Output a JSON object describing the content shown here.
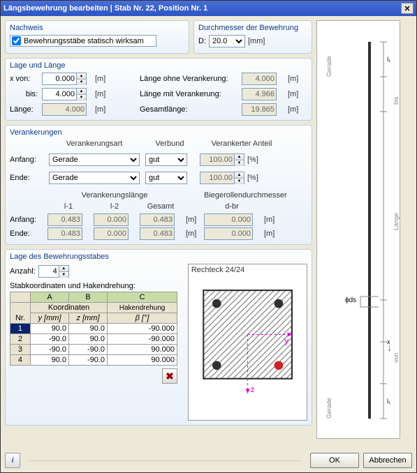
{
  "window": {
    "title": "Längsbewehrung bearbeiten  |  Stab Nr. 22, Position Nr. 1"
  },
  "nachweis": {
    "title": "Nachweis",
    "checkbox_label": "Bewehrungsstäbe statisch wirksam",
    "checked": true
  },
  "durchmesser": {
    "title": "Durchmesser der Bewehrung",
    "label": "D:",
    "value": "20.0",
    "unit": "[mm]"
  },
  "lage": {
    "title": "Lage und Länge",
    "xvon_label": "x von:",
    "xvon": "0.000",
    "xvon_unit": "[m]",
    "bis_label": "bis:",
    "bis": "4.000",
    "bis_unit": "[m]",
    "laenge_label": "Länge:",
    "laenge": "4.000",
    "laenge_unit": "[m]",
    "lov_label": "Länge ohne Verankerung:",
    "lov": "4.000",
    "lov_unit": "[m]",
    "lmv_label": "Länge mit Verankerung:",
    "lmv": "4.966",
    "lmv_unit": "[m]",
    "ges_label": "Gesamtlänge:",
    "ges": "19.865",
    "ges_unit": "[m]"
  },
  "verank": {
    "title": "Verankerungen",
    "hdr_art": "Verankerungsart",
    "hdr_verbund": "Verbund",
    "hdr_anteil": "Verankerter Anteil",
    "anfang_label": "Anfang:",
    "ende_label": "Ende:",
    "anfang_art": "Gerade",
    "ende_art": "Gerade",
    "anfang_verbund": "gut",
    "ende_verbund": "gut",
    "anfang_anteil": "100.00",
    "ende_anteil": "100.00",
    "anteil_unit": "[%]",
    "hdr_vl": "Verankerungslänge",
    "hdr_dbr": "Biegerollendurchmesser",
    "hdr_l1": "l-1",
    "hdr_l2": "l-2",
    "hdr_gesamt": "Gesamt",
    "hdr_dbr2": "d-br",
    "a_l1": "0.483",
    "a_l2": "0.000",
    "a_ges": "0.483",
    "a_dbr": "0.000",
    "e_l1": "0.483",
    "e_l2": "0.000",
    "e_ges": "0.483",
    "e_dbr": "0.000",
    "m_unit": "[m]"
  },
  "lagestab": {
    "title": "Lage des Bewehrungsstabes",
    "anzahl_label": "Anzahl:",
    "anzahl": "4",
    "sub_label": "Stabkoordinaten und Hakendrehung:",
    "col_A": "A",
    "col_B": "B",
    "col_C": "C",
    "hdr_koord": "Koordinaten",
    "hdr_haken": "Hakendrehung",
    "hdr_nr": "Nr.",
    "hdr_y": "y [mm]",
    "hdr_z": "z [mm]",
    "hdr_b": "β [°]",
    "rows": [
      {
        "nr": "1",
        "y": "90.0",
        "z": "90.0",
        "b": "-90.000"
      },
      {
        "nr": "2",
        "y": "-90.0",
        "z": "90.0",
        "b": "-90.000"
      },
      {
        "nr": "3",
        "y": "-90.0",
        "z": "-90.0",
        "b": "90.000"
      },
      {
        "nr": "4",
        "y": "90.0",
        "z": "-90.0",
        "b": "90.000"
      }
    ],
    "section_title": "Rechteck 24/24"
  },
  "preview": {
    "gerade": "Gerade",
    "bis": "bis",
    "laenge": "Länge",
    "von": "von",
    "ds": "ϕds",
    "x": "x",
    "l1": "l₁"
  },
  "footer": {
    "ok": "OK",
    "cancel": "Abbrechen"
  },
  "colors": {
    "accent": "#2c55c4",
    "hatch": "#707070",
    "rebar": "#303030",
    "axis_y": "#e000e0",
    "axis_z": "#e000e0",
    "sel": "#d02020"
  }
}
